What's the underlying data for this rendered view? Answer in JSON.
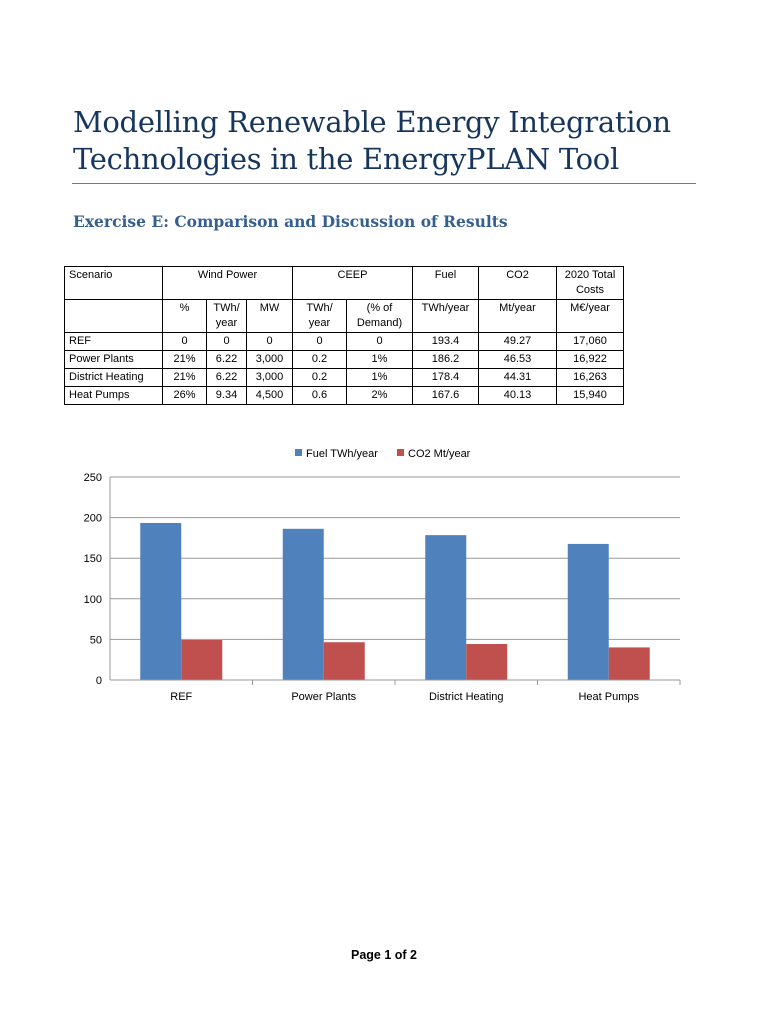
{
  "title_lines": [
    "Modelling Renewable Energy Integration",
    "Technologies in the EnergyPLAN Tool"
  ],
  "subtitle": "Exercise E: Comparison and Discussion of Results",
  "table": {
    "header1": [
      "Scenario",
      "Wind Power",
      "CEEP",
      "Fuel",
      "CO2",
      "2020 Total Costs"
    ],
    "header2": [
      "",
      "%",
      "TWh/ year",
      "MW",
      "TWh/ year",
      "(% of Demand)",
      "TWh/year",
      "Mt/year",
      "M€/year"
    ],
    "rows": [
      [
        "REF",
        "0",
        "0",
        "0",
        "0",
        "0",
        "193.4",
        "49.27",
        "17,060"
      ],
      [
        "Power Plants",
        "21%",
        "6.22",
        "3,000",
        "0.2",
        "1%",
        "186.2",
        "46.53",
        "16,922"
      ],
      [
        "District Heating",
        "21%",
        "6.22",
        "3,000",
        "0.2",
        "1%",
        "178.4",
        "44.31",
        "16,263"
      ],
      [
        "Heat Pumps",
        "26%",
        "9.34",
        "4,500",
        "0.6",
        "2%",
        "167.6",
        "40.13",
        "15,940"
      ]
    ]
  },
  "chart_data": {
    "type": "bar",
    "categories": [
      "REF",
      "Power Plants",
      "District Heating",
      "Heat Pumps"
    ],
    "series": [
      {
        "name": "Fuel TWh/year",
        "values": [
          193.4,
          186.2,
          178.4,
          167.6
        ],
        "color": "#4f81bd"
      },
      {
        "name": "CO2 Mt/year",
        "values": [
          49.27,
          46.53,
          44.31,
          40.13
        ],
        "color": "#c0504d"
      }
    ],
    "ylim": [
      0,
      250
    ],
    "yticks": [
      0,
      50,
      100,
      150,
      200,
      250
    ],
    "grid": true,
    "legend": "top"
  },
  "footer": "Page 1 of 2"
}
